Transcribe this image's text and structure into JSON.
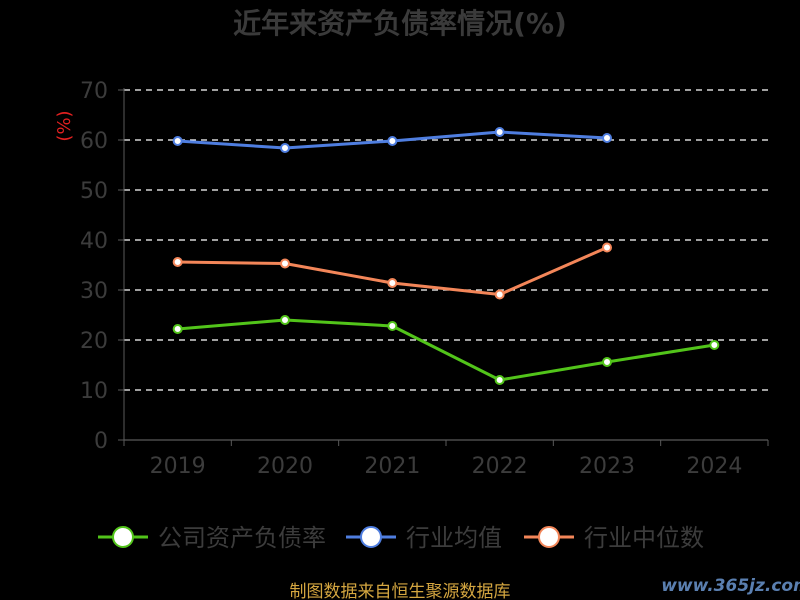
{
  "source_note": "制图数据来自恒生聚源数据库",
  "watermark": "www.365jz.com",
  "chart_data": {
    "type": "line",
    "title": "近年来资产负债率情况(%)",
    "xlabel": "",
    "ylabel": "(%)",
    "categories": [
      "2019",
      "2020",
      "2021",
      "2022",
      "2023",
      "2024"
    ],
    "ylim": [
      0,
      70
    ],
    "yticks": [
      0,
      10,
      20,
      30,
      40,
      50,
      60,
      70
    ],
    "grid": true,
    "legend_position": "bottom",
    "series": [
      {
        "name": "公司资产负债率",
        "color": "#52c41a",
        "values": [
          22.2,
          24.0,
          22.8,
          12.0,
          15.6,
          19.0
        ]
      },
      {
        "name": "行业均值",
        "color": "#4f7ee0",
        "values": [
          59.8,
          58.4,
          59.8,
          61.6,
          60.4,
          null
        ]
      },
      {
        "name": "行业中位数",
        "color": "#f38659",
        "values": [
          35.6,
          35.3,
          31.4,
          29.1,
          38.5,
          null
        ]
      }
    ]
  }
}
